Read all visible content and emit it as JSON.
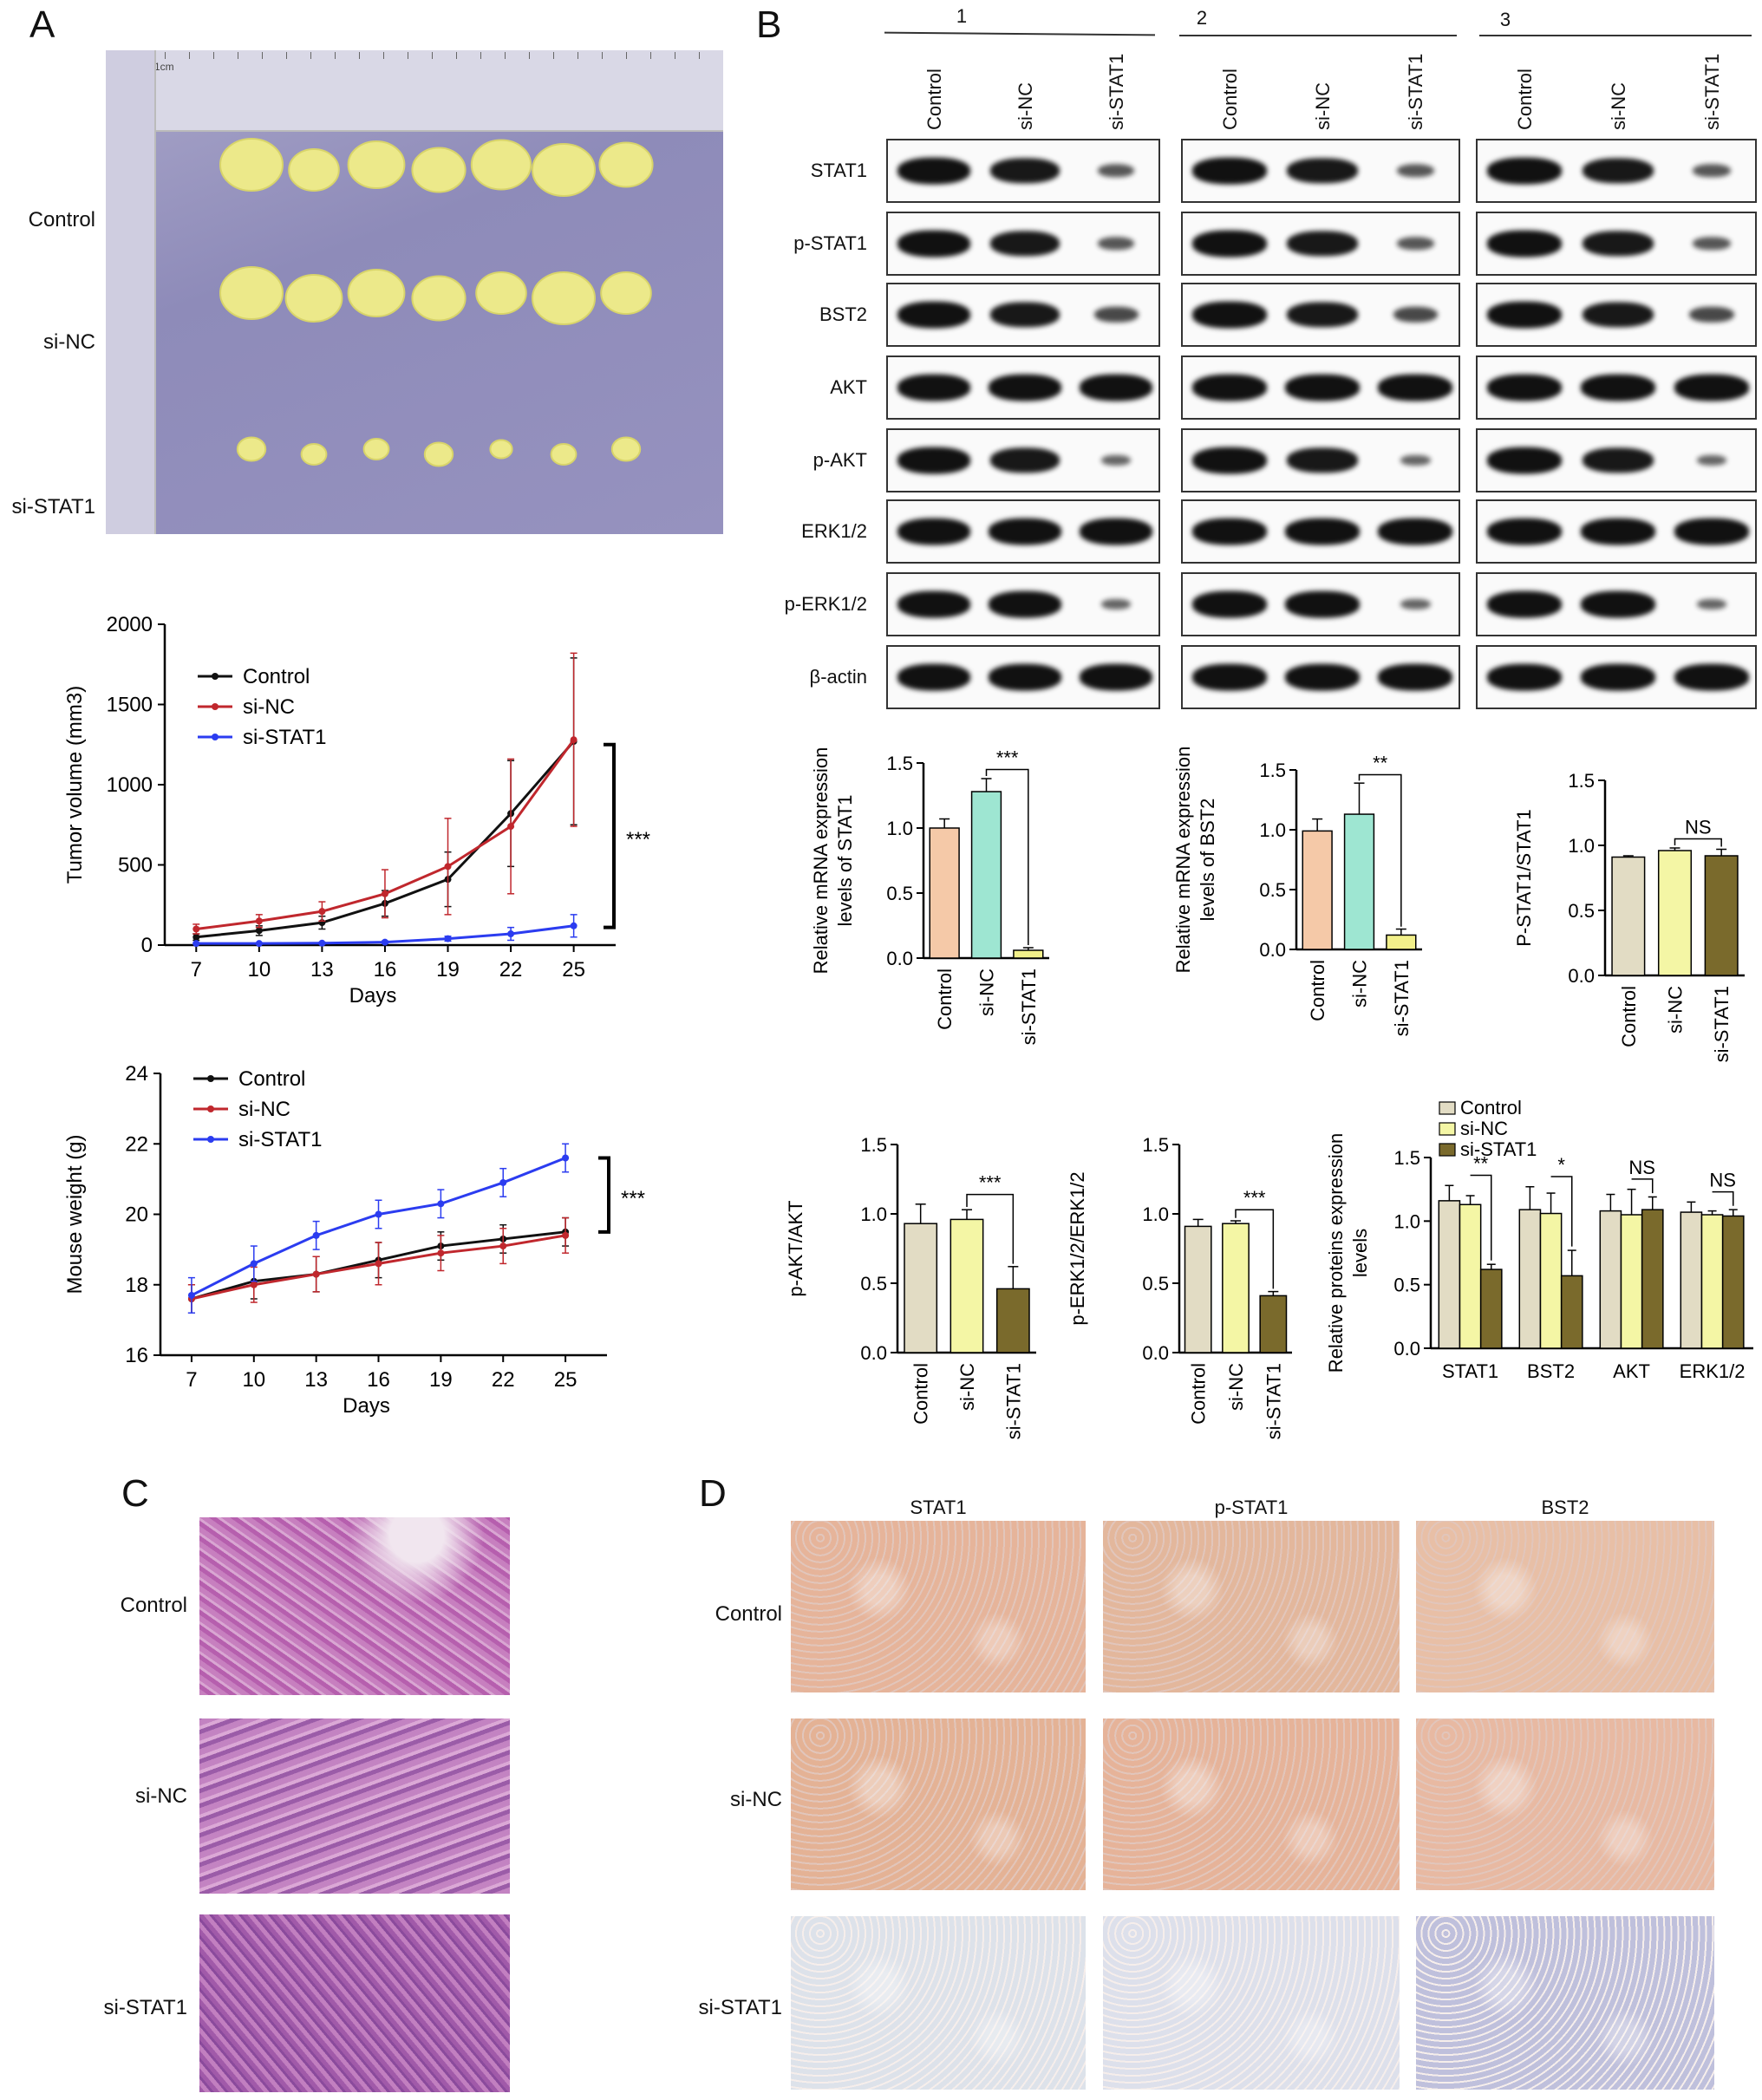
{
  "panels": {
    "A": "A",
    "B": "B",
    "C": "C",
    "D": "D"
  },
  "photo": {
    "rows": [
      "Control",
      "si-NC",
      "si-STAT1"
    ],
    "ruler_text": "1cm"
  },
  "wb": {
    "replicates": [
      "1",
      "2",
      "3"
    ],
    "lanes": [
      "Control",
      "si-NC",
      "si-STAT1"
    ],
    "proteins": [
      "STAT1",
      "p-STAT1",
      "BST2",
      "AKT",
      "p-AKT",
      "ERK1/2",
      "p-ERK1/2",
      "β-actin"
    ]
  },
  "colors": {
    "black": "#111111",
    "red": "#c0272d",
    "blue": "#2b3cf0",
    "control_bar": "#f5c9a8",
    "sinc_bar": "#9ee6d2",
    "sistat1_bar": "#f2f08a",
    "tan": "#e2dcc4",
    "lightyellow": "#f4f6a5",
    "olive": "#7a6a2c"
  },
  "chart_data": [
    {
      "type": "line",
      "x": [
        7,
        10,
        13,
        16,
        19,
        22,
        25
      ],
      "xlabel": "Days",
      "ylabel": "Tumor volume (mm3)",
      "ylim": [
        0,
        2000
      ],
      "yticks": [
        0,
        500,
        1000,
        1500,
        2000
      ],
      "series": [
        {
          "name": "Control",
          "values": [
            50,
            90,
            140,
            260,
            410,
            820,
            1270
          ],
          "err": [
            20,
            30,
            40,
            80,
            170,
            330,
            520
          ]
        },
        {
          "name": "si-NC",
          "values": [
            100,
            150,
            210,
            320,
            490,
            740,
            1280
          ],
          "err": [
            30,
            40,
            60,
            150,
            300,
            420,
            540
          ]
        },
        {
          "name": "si-STAT1",
          "values": [
            10,
            10,
            12,
            18,
            40,
            70,
            120
          ],
          "err": [
            5,
            5,
            6,
            8,
            15,
            40,
            70
          ]
        }
      ],
      "annotation": "***"
    },
    {
      "type": "line",
      "x": [
        7,
        10,
        13,
        16,
        19,
        22,
        25
      ],
      "xlabel": "Days",
      "ylabel": "Mouse weight (g)",
      "ylim": [
        16,
        24
      ],
      "yticks": [
        16,
        18,
        20,
        22,
        24
      ],
      "series": [
        {
          "name": "Control",
          "values": [
            17.6,
            18.1,
            18.3,
            18.7,
            19.1,
            19.3,
            19.5
          ],
          "err": [
            0.4,
            0.5,
            0.5,
            0.5,
            0.4,
            0.4,
            0.4
          ]
        },
        {
          "name": "si-NC",
          "values": [
            17.6,
            18.0,
            18.3,
            18.6,
            18.9,
            19.1,
            19.4
          ],
          "err": [
            0.4,
            0.5,
            0.5,
            0.6,
            0.5,
            0.5,
            0.5
          ]
        },
        {
          "name": "si-STAT1",
          "values": [
            17.7,
            18.6,
            19.4,
            20.0,
            20.3,
            20.9,
            21.6
          ],
          "err": [
            0.5,
            0.5,
            0.4,
            0.4,
            0.4,
            0.4,
            0.4
          ]
        }
      ],
      "annotation": "***"
    },
    {
      "type": "bar",
      "categories": [
        "Control",
        "si-NC",
        "si-STAT1"
      ],
      "values": [
        1.0,
        1.28,
        0.06
      ],
      "err": [
        0.07,
        0.1,
        0.02
      ],
      "ylabel": "Relative mRNA expression levels of STAT1",
      "ylim": [
        0,
        1.5
      ],
      "yticks": [
        0.0,
        0.5,
        1.0,
        1.5
      ],
      "annotation": "***"
    },
    {
      "type": "bar",
      "categories": [
        "Control",
        "si-NC",
        "si-STAT1"
      ],
      "values": [
        0.99,
        1.13,
        0.12
      ],
      "err": [
        0.1,
        0.26,
        0.05
      ],
      "ylabel": "Relative mRNA expression levels of BST2",
      "ylim": [
        0,
        1.5
      ],
      "yticks": [
        0.0,
        0.5,
        1.0,
        1.5
      ],
      "annotation": "**"
    },
    {
      "type": "bar",
      "categories": [
        "Control",
        "si-NC",
        "si-STAT1"
      ],
      "values": [
        0.91,
        0.96,
        0.92
      ],
      "err": [
        0.01,
        0.02,
        0.05
      ],
      "ylabel": "P-STAT1/STAT1",
      "ylim": [
        0,
        1.5
      ],
      "yticks": [
        0.0,
        0.5,
        1.0,
        1.5
      ],
      "annotation": "NS"
    },
    {
      "type": "bar",
      "categories": [
        "Control",
        "si-NC",
        "si-STAT1"
      ],
      "values": [
        0.93,
        0.96,
        0.46
      ],
      "err": [
        0.14,
        0.07,
        0.16
      ],
      "ylabel": "p-AKT/AKT",
      "ylim": [
        0,
        1.5
      ],
      "yticks": [
        0.0,
        0.5,
        1.0,
        1.5
      ],
      "annotation": "***"
    },
    {
      "type": "bar",
      "categories": [
        "Control",
        "si-NC",
        "si-STAT1"
      ],
      "values": [
        0.91,
        0.93,
        0.41
      ],
      "err": [
        0.05,
        0.02,
        0.03
      ],
      "ylabel": "p-ERK1/2/ERK1/2",
      "ylim": [
        0,
        1.5
      ],
      "yticks": [
        0.0,
        0.5,
        1.0,
        1.5
      ],
      "annotation": "***"
    },
    {
      "type": "bar",
      "categories": [
        "STAT1",
        "BST2",
        "AKT",
        "ERK1/2"
      ],
      "ylabel": "Relative proteins expression levels",
      "ylim": [
        0,
        1.5
      ],
      "yticks": [
        0.0,
        0.5,
        1.0,
        1.5
      ],
      "series": [
        {
          "name": "Control",
          "values": [
            1.16,
            1.09,
            1.08,
            1.07
          ],
          "err": [
            0.12,
            0.18,
            0.13,
            0.08
          ]
        },
        {
          "name": "si-NC",
          "values": [
            1.13,
            1.06,
            1.05,
            1.05
          ],
          "err": [
            0.07,
            0.16,
            0.2,
            0.03
          ]
        },
        {
          "name": "si-STAT1",
          "values": [
            0.62,
            0.57,
            1.09,
            1.04
          ],
          "err": [
            0.04,
            0.2,
            0.1,
            0.05
          ]
        }
      ],
      "annotations": [
        "**",
        "*",
        "NS",
        "NS"
      ]
    }
  ],
  "he": {
    "rows": [
      "Control",
      "si-NC",
      "si-STAT1"
    ]
  },
  "ihc": {
    "columns": [
      "STAT1",
      "p-STAT1",
      "BST2"
    ],
    "rows": [
      "Control",
      "si-NC",
      "si-STAT1"
    ]
  }
}
